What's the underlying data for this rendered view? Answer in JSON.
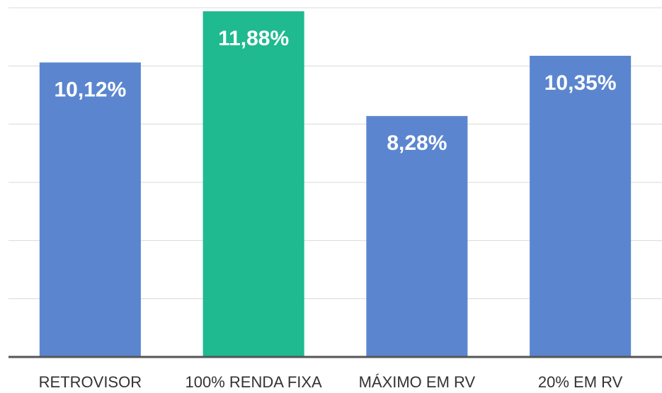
{
  "chart_data": {
    "type": "bar",
    "categories": [
      "RETROVISOR",
      "100% RENDA FIXA",
      "MÁXIMO EM RV",
      "20% EM RV"
    ],
    "values": [
      10.12,
      11.88,
      8.28,
      10.35
    ],
    "value_labels": [
      "10,12%",
      "11,88%",
      "8,28%",
      "10,35%"
    ],
    "colors": [
      "#5b86cf",
      "#1fba8f",
      "#5b86cf",
      "#5b86cf"
    ],
    "ylim": [
      0,
      12
    ],
    "yticks": [
      0,
      2,
      4,
      6,
      8,
      10,
      12
    ],
    "grid": true
  }
}
